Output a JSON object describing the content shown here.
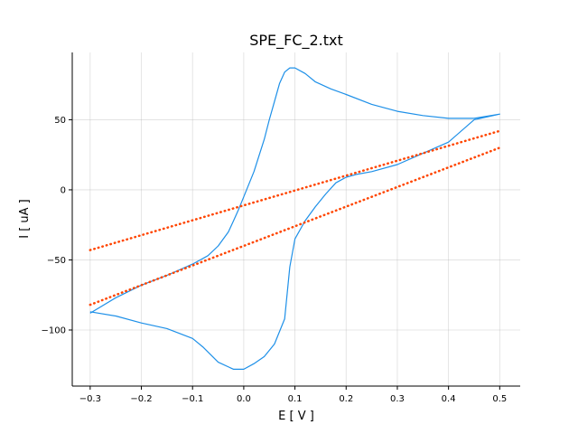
{
  "chart_data": {
    "type": "line",
    "title": "SPE_FC_2.txt",
    "xlabel": "E [ V ]",
    "ylabel": "I [ uA ]",
    "xlim": [
      -0.335,
      0.54
    ],
    "ylim": [
      -140,
      98
    ],
    "xticks": [
      -0.3,
      -0.2,
      -0.1,
      0.0,
      0.1,
      0.2,
      0.3,
      0.4,
      0.5
    ],
    "xtick_labels": [
      "−0.3",
      "−0.2",
      "−0.1",
      "0.0",
      "0.1",
      "0.2",
      "0.3",
      "0.4",
      "0.5"
    ],
    "yticks": [
      -100,
      -50,
      0,
      50
    ],
    "ytick_labels": [
      "−100",
      "−50",
      "0",
      "50"
    ],
    "grid": true,
    "series": [
      {
        "kind": "cv-curve",
        "color": "#1e90e8",
        "style": "solid",
        "x": [
          -0.3,
          -0.25,
          -0.2,
          -0.15,
          -0.1,
          -0.07,
          -0.05,
          -0.03,
          -0.02,
          -0.01,
          0.0,
          0.02,
          0.04,
          0.05,
          0.06,
          0.07,
          0.08,
          0.09,
          0.1,
          0.12,
          0.14,
          0.17,
          0.2,
          0.25,
          0.3,
          0.35,
          0.4,
          0.45,
          0.5,
          0.45,
          0.4,
          0.35,
          0.3,
          0.25,
          0.22,
          0.2,
          0.18,
          0.16,
          0.14,
          0.12,
          0.1,
          0.09,
          0.08,
          0.06,
          0.04,
          0.02,
          0.0,
          -0.02,
          -0.05,
          -0.08,
          -0.1,
          -0.15,
          -0.2,
          -0.25,
          -0.3
        ],
        "y": [
          -88,
          -77,
          -68,
          -61,
          -53,
          -47,
          -40,
          -30,
          -22,
          -14,
          -5,
          13,
          36,
          50,
          63,
          76,
          84,
          87,
          87,
          83,
          77,
          72,
          68,
          61,
          56,
          53,
          51,
          51,
          54,
          50,
          34,
          26,
          18,
          13,
          11,
          9,
          5,
          -3,
          -12,
          -22,
          -35,
          -55,
          -92,
          -110,
          -119,
          -124,
          -128,
          -128,
          -123,
          -112,
          -106,
          -99,
          -95,
          -90,
          -87
        ]
      },
      {
        "kind": "baseline-upper",
        "color": "#ff4500",
        "style": "dotted",
        "x": [
          -0.3,
          0.5
        ],
        "y": [
          -43,
          42
        ]
      },
      {
        "kind": "baseline-lower",
        "color": "#ff4500",
        "style": "dotted",
        "x": [
          -0.3,
          0.5
        ],
        "y": [
          -82,
          30
        ]
      }
    ]
  }
}
